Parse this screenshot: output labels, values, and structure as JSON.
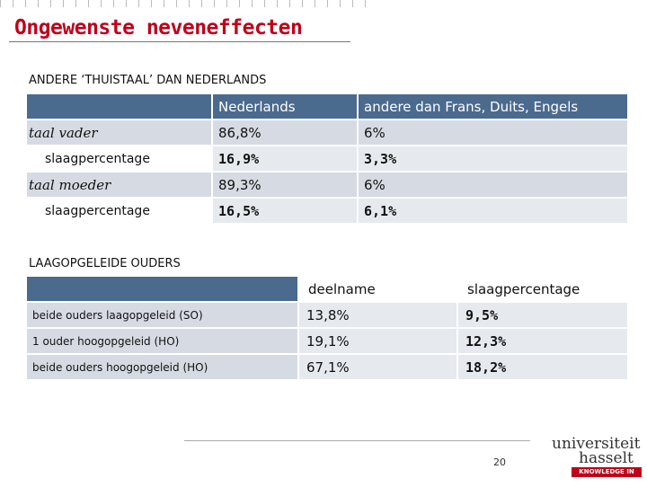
{
  "header": {
    "title": "Ongewenste neveneffecten"
  },
  "table1": {
    "caption": "ANDERE ‘THUISTAAL’ DAN NEDERLANDS",
    "columns": [
      "Nederlands",
      "andere dan Frans, Duits, Engels"
    ],
    "rows": [
      [
        "taal vader",
        "86,8%",
        "6%"
      ],
      [
        "slaagpercentage",
        "16,9%",
        "3,3%"
      ],
      [
        "taal moeder",
        "89,3%",
        "6%"
      ],
      [
        "slaagpercentage",
        "16,5%",
        "6,1%"
      ]
    ]
  },
  "table2": {
    "caption": "LAAGOPGELEIDE OUDERS",
    "columns": [
      "deelname",
      "slaagpercentage"
    ],
    "rows": [
      [
        "beide ouders laagopgeleid (SO)",
        "13,8%",
        "9,5%"
      ],
      [
        "1 ouder hoogopgeleid (HO)",
        "19,1%",
        "12,3%"
      ],
      [
        "beide ouders hoogopgeleid (HO)",
        "67,1%",
        "18,2%"
      ]
    ]
  },
  "footer": {
    "page": 20,
    "logo": [
      "universiteit",
      "hasselt",
      "KNOWLEDGE IN ACTION"
    ]
  }
}
